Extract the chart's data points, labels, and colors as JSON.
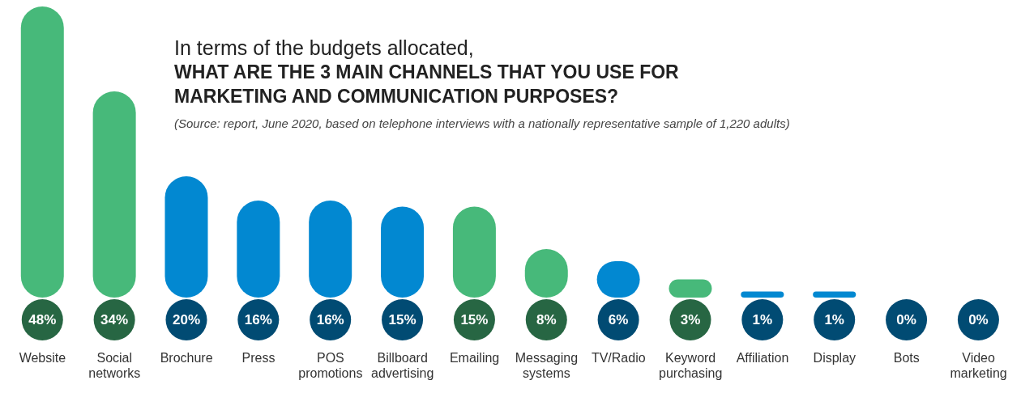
{
  "chart_data": {
    "type": "bar",
    "title": "In terms of the budgets allocated,",
    "subtitle": "WHAT ARE THE 3 MAIN CHANNELS THAT YOU USE FOR MARKETING AND COMMUNICATION PURPOSES?",
    "annotations": [
      "(Source: report, June 2020, based on telephone interviews with a nationally representative sample of 1,220 adults)"
    ],
    "categories": [
      "Website",
      "Social networks",
      "Brochure",
      "Press",
      "POS promotions",
      "Billboard advertising",
      "Emailing",
      "Messaging systems",
      "TV/Radio",
      "Keyword purchasing",
      "Affiliation",
      "Display",
      "Bots",
      "Video marketing"
    ],
    "values": [
      48,
      34,
      20,
      16,
      16,
      15,
      15,
      8,
      6,
      3,
      1,
      1,
      0,
      0
    ],
    "colors": [
      "#47b97a",
      "#47b97a",
      "#0288d1",
      "#0288d1",
      "#0288d1",
      "#0288d1",
      "#47b97a",
      "#47b97a",
      "#0288d1",
      "#47b97a",
      "#0288d1",
      "#0288d1",
      "#0288d1",
      "#0288d1"
    ],
    "value_labels": [
      "48%",
      "34%",
      "20%",
      "16%",
      "16%",
      "15%",
      "15%",
      "8%",
      "6%",
      "3%",
      "1%",
      "1%",
      "0%",
      "0%"
    ]
  }
}
